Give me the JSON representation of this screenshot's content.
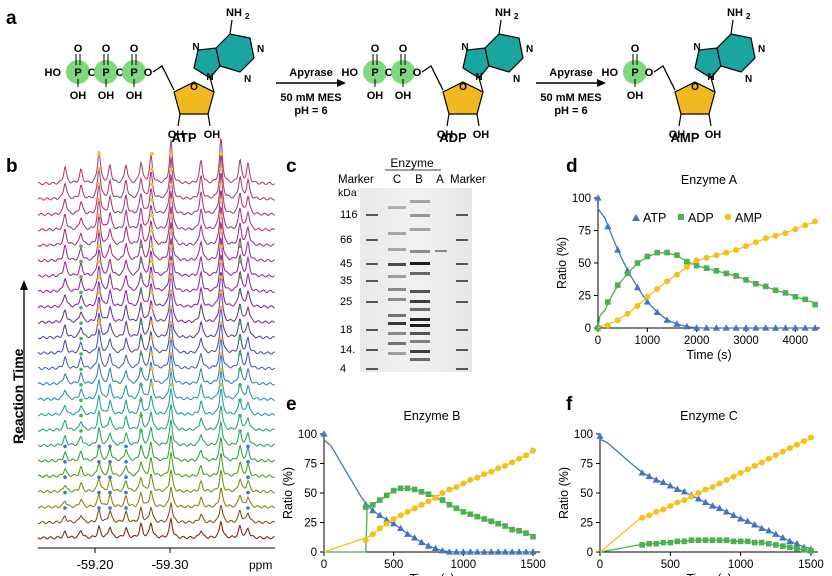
{
  "panel_letters": {
    "a": "a",
    "b": "b",
    "c": "c",
    "d": "d",
    "e": "e",
    "f": "f"
  },
  "scheme": {
    "molecules": [
      {
        "name": "ATP",
        "phosphates": 3
      },
      {
        "name": "ADP",
        "phosphates": 2
      },
      {
        "name": "AMP",
        "phosphates": 1
      }
    ],
    "atom_labels": {
      "nh2": "NH",
      "nh2_sub": "2",
      "n": "N",
      "ho": "HO",
      "oh": "OH",
      "p": "P",
      "o": "O"
    },
    "arrows": [
      {
        "enzyme": "Apyrase",
        "buffer": "50 mM MES",
        "ph": "pH = 6"
      },
      {
        "enzyme": "Apyrase",
        "buffer": "50 mM MES",
        "ph": "pH = 6"
      }
    ]
  },
  "nmr": {
    "ylabel": "Reaction Time",
    "xticks": [
      "-59.20",
      "-59.30"
    ],
    "xunit": "ppm",
    "n_traces": 24
  },
  "gel": {
    "title": "Enzyme",
    "lanes": [
      "Marker",
      "C",
      "B",
      "A",
      "Marker"
    ],
    "unit": "kDa",
    "markers": [
      "116",
      "66",
      "45",
      "35",
      "25",
      "18",
      "14.",
      "4"
    ]
  },
  "colors": {
    "atp": "#4472c4",
    "adp": "#4caf50",
    "amp": "#f2c21b",
    "green_circle": "#7ed87e",
    "purine": "#1aa5a0",
    "ribose": "#f2b820"
  },
  "chart_data": [
    {
      "panel": "d",
      "type": "scatter",
      "title": "Enzyme A",
      "xlabel": "Time (s)",
      "ylabel": "Ratio (%)",
      "xlim": [
        0,
        4500
      ],
      "ylim": [
        0,
        100
      ],
      "xticks": [
        0,
        1000,
        2000,
        3000,
        4000
      ],
      "yticks": [
        0,
        25,
        50,
        75,
        100
      ],
      "legend": [
        "ATP",
        "ADP",
        "AMP"
      ],
      "series": [
        {
          "name": "ATP",
          "x": [
            0,
            200,
            400,
            600,
            800,
            1000,
            1200,
            1400,
            1600,
            1800,
            2000,
            2200,
            2400,
            2600,
            2800,
            3000,
            3200,
            3400,
            3600,
            3800,
            4000,
            4200,
            4400
          ],
          "y": [
            100,
            78,
            60,
            44,
            31,
            20,
            12,
            6,
            3,
            1,
            0,
            0,
            0,
            0,
            0,
            0,
            0,
            0,
            0,
            0,
            0,
            0,
            0
          ]
        },
        {
          "name": "ADP",
          "x": [
            0,
            200,
            400,
            600,
            800,
            1000,
            1200,
            1400,
            1600,
            1800,
            2000,
            2200,
            2400,
            2600,
            2800,
            3000,
            3200,
            3400,
            3600,
            3800,
            4000,
            4200,
            4400
          ],
          "y": [
            0,
            20,
            33,
            42,
            50,
            55,
            58,
            58,
            56,
            51,
            48,
            46,
            44,
            42,
            40,
            37,
            34,
            32,
            29,
            27,
            24,
            22,
            18
          ]
        },
        {
          "name": "AMP",
          "x": [
            200,
            400,
            600,
            800,
            1000,
            1200,
            1400,
            1600,
            1800,
            2000,
            2200,
            2400,
            2600,
            2800,
            3000,
            3200,
            3400,
            3600,
            3800,
            4000,
            4200,
            4400
          ],
          "y": [
            2,
            6,
            11,
            17,
            24,
            30,
            36,
            41,
            47,
            52,
            54,
            56,
            58,
            60,
            63,
            66,
            69,
            71,
            73,
            76,
            79,
            82
          ]
        }
      ]
    },
    {
      "panel": "e",
      "type": "scatter",
      "title": "Enzyme B",
      "xlabel": "Time (s)",
      "ylabel": "Ratio (%)",
      "xlim": [
        0,
        1550
      ],
      "ylim": [
        0,
        100
      ],
      "xticks": [
        0,
        500,
        1000,
        1500
      ],
      "yticks": [
        0,
        25,
        50,
        75,
        100
      ],
      "series": [
        {
          "name": "ATP",
          "x": [
            0,
            300,
            350,
            400,
            450,
            500,
            550,
            600,
            650,
            700,
            750,
            800,
            850,
            900,
            950,
            1000,
            1050,
            1100,
            1150,
            1200,
            1250,
            1300,
            1350,
            1400,
            1450,
            1500
          ],
          "y": [
            100,
            40,
            35,
            31,
            27,
            24,
            20,
            15,
            12,
            8,
            5,
            3,
            1,
            0,
            0,
            0,
            0,
            0,
            0,
            0,
            0,
            0,
            0,
            0,
            0,
            0
          ]
        },
        {
          "name": "ADP",
          "x": [
            300,
            350,
            400,
            450,
            500,
            550,
            600,
            650,
            700,
            750,
            800,
            850,
            900,
            950,
            1000,
            1050,
            1100,
            1150,
            1200,
            1250,
            1300,
            1350,
            1400,
            1450,
            1500
          ],
          "y": [
            38,
            40,
            44,
            48,
            52,
            54,
            54,
            53,
            51,
            49,
            46,
            44,
            40,
            37,
            34,
            32,
            30,
            28,
            26,
            24,
            22,
            19,
            18,
            16,
            13
          ]
        },
        {
          "name": "AMP",
          "x": [
            300,
            350,
            400,
            450,
            500,
            550,
            600,
            650,
            700,
            750,
            800,
            850,
            900,
            950,
            1000,
            1050,
            1100,
            1150,
            1200,
            1250,
            1300,
            1350,
            1400,
            1450,
            1500
          ],
          "y": [
            10,
            15,
            20,
            24,
            28,
            31,
            34,
            37,
            40,
            43,
            46,
            50,
            53,
            55,
            58,
            61,
            63,
            66,
            68,
            71,
            73,
            76,
            79,
            82,
            86
          ]
        }
      ]
    },
    {
      "panel": "f",
      "type": "scatter",
      "title": "Enzyme C",
      "xlabel": "Time (s)",
      "ylabel": "Ratio (%)",
      "xlim": [
        0,
        1550
      ],
      "ylim": [
        0,
        100
      ],
      "xticks": [
        0,
        500,
        1000,
        1500
      ],
      "yticks": [
        0,
        25,
        50,
        75,
        100
      ],
      "series": [
        {
          "name": "ATP",
          "x": [
            0,
            300,
            350,
            400,
            450,
            500,
            550,
            600,
            650,
            700,
            750,
            800,
            850,
            900,
            950,
            1000,
            1050,
            1100,
            1150,
            1200,
            1250,
            1300,
            1350,
            1400,
            1450,
            1500
          ],
          "y": [
            98,
            67,
            64,
            61,
            59,
            56,
            53,
            51,
            48,
            45,
            42,
            39,
            37,
            34,
            31,
            28,
            26,
            23,
            20,
            18,
            15,
            12,
            9,
            7,
            4,
            2
          ]
        },
        {
          "name": "ADP",
          "x": [
            300,
            350,
            400,
            450,
            500,
            550,
            600,
            650,
            700,
            750,
            800,
            850,
            900,
            950,
            1000,
            1050,
            1100,
            1150,
            1200,
            1250,
            1300,
            1350,
            1400,
            1450,
            1500
          ],
          "y": [
            6,
            7,
            7,
            8,
            8,
            9,
            9,
            10,
            10,
            10,
            10,
            10,
            10,
            9,
            9,
            9,
            8,
            8,
            7,
            6,
            5,
            4,
            3,
            2,
            1
          ]
        },
        {
          "name": "AMP",
          "x": [
            300,
            350,
            400,
            450,
            500,
            550,
            600,
            650,
            700,
            750,
            800,
            850,
            900,
            950,
            1000,
            1050,
            1100,
            1150,
            1200,
            1250,
            1300,
            1350,
            1400,
            1450,
            1500
          ],
          "y": [
            29,
            31,
            34,
            36,
            39,
            42,
            44,
            47,
            50,
            53,
            55,
            58,
            61,
            64,
            67,
            70,
            73,
            76,
            79,
            82,
            85,
            88,
            91,
            94,
            97
          ]
        }
      ]
    }
  ]
}
